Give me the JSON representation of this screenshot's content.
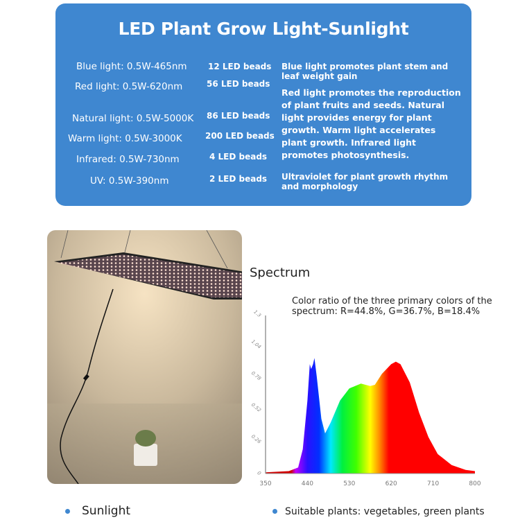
{
  "panel": {
    "title": "LED Plant Grow Light-Sunlight",
    "background_color": "#3f87d0",
    "specs": [
      {
        "label": "Blue light: 0.5W-465nm",
        "beads": "12 LED beads"
      },
      {
        "label": "Red light: 0.5W-620nm",
        "beads": "56 LED beads"
      },
      {
        "label": "Natural light: 0.5W-5000K",
        "beads": "86 LED beads"
      },
      {
        "label": "Warm light: 0.5W-3000K",
        "beads": "200 LED beads"
      },
      {
        "label": "Infrared: 0.5W-730nm",
        "beads": "4 LED beads"
      },
      {
        "label": "UV: 0.5W-390nm",
        "beads": "2 LED beads"
      }
    ],
    "descriptions": [
      "Blue light promotes plant stem and leaf weight gain",
      "Red light promotes the reproduction of plant fruits and seeds. Natural light provides energy for plant growth. Warm light accelerates plant growth. Infrared light promotes photosynthesis.",
      "Ultraviolet for plant growth rhythm and morphology"
    ]
  },
  "spectrum": {
    "title": "Spectrum",
    "ratio_text": "Color ratio of the three primary colors of the spectrum: R=44.8%, G=36.7%, B=18.4%"
  },
  "chart_data": {
    "type": "area",
    "x_ticks": [
      "350",
      "440",
      "530",
      "620",
      "710",
      "800"
    ],
    "y_ticks": [
      "0",
      "0.26",
      "0.52",
      "0.78",
      "1.04",
      "1.3"
    ],
    "xlim": [
      350,
      800
    ],
    "ylim": [
      0,
      1.3
    ],
    "x": [
      350,
      400,
      420,
      430,
      440,
      445,
      448,
      452,
      455,
      460,
      470,
      478,
      490,
      510,
      530,
      555,
      575,
      585,
      600,
      620,
      630,
      640,
      660,
      680,
      700,
      720,
      750,
      780,
      800
    ],
    "y": [
      0.01,
      0.02,
      0.05,
      0.2,
      0.6,
      0.9,
      0.86,
      0.9,
      0.95,
      0.8,
      0.45,
      0.33,
      0.42,
      0.6,
      0.7,
      0.74,
      0.72,
      0.73,
      0.82,
      0.9,
      0.92,
      0.9,
      0.75,
      0.5,
      0.3,
      0.16,
      0.07,
      0.03,
      0.02
    ]
  },
  "bottom": {
    "left": "Sunlight",
    "right": "Suitable plants: vegetables, green plants"
  }
}
